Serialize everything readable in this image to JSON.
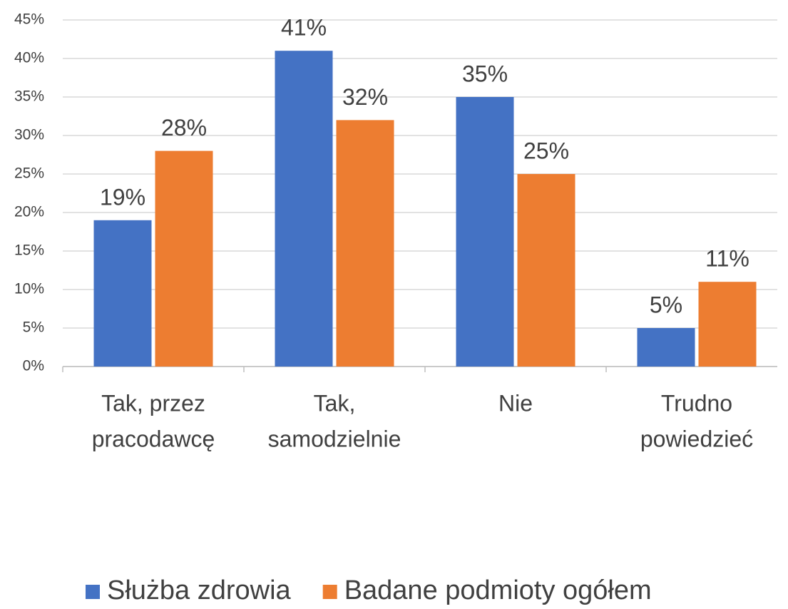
{
  "chart_data": {
    "type": "bar",
    "categories": [
      [
        "Tak, przez",
        "pracodawcę"
      ],
      [
        "Tak,",
        "samodzielnie"
      ],
      [
        "Nie"
      ],
      [
        "Trudno",
        "powiedzieć"
      ]
    ],
    "series": [
      {
        "name": "Służba zdrowia",
        "color": "#4472c4",
        "values": [
          19,
          41,
          35,
          5
        ],
        "value_labels": [
          "19%",
          "41%",
          "35%",
          "5%"
        ]
      },
      {
        "name": "Badane podmioty ogółem",
        "color": "#ed7d31",
        "values": [
          28,
          32,
          25,
          11
        ],
        "value_labels": [
          "28%",
          "32%",
          "25%",
          "11%"
        ]
      }
    ],
    "ylim": [
      0,
      45
    ],
    "yticks": [
      {
        "value": 0,
        "label": "0%"
      },
      {
        "value": 5,
        "label": "5%"
      },
      {
        "value": 10,
        "label": "10%"
      },
      {
        "value": 15,
        "label": "15%"
      },
      {
        "value": 20,
        "label": "20%"
      },
      {
        "value": 25,
        "label": "25%"
      },
      {
        "value": 30,
        "label": "30%"
      },
      {
        "value": 35,
        "label": "35%"
      },
      {
        "value": 40,
        "label": "40%"
      },
      {
        "value": 45,
        "label": "45%"
      }
    ],
    "grid": true,
    "legend": "bottom"
  }
}
